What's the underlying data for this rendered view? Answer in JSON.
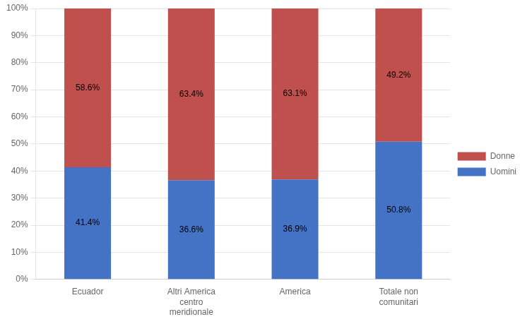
{
  "chart_data": {
    "type": "bar",
    "stacked": true,
    "categories": [
      "Ecuador",
      "Altri America\ncentro\nmeridionale",
      "America",
      "Totale non\ncomunitari"
    ],
    "series": [
      {
        "name": "Uomini",
        "color": "#4472C4",
        "values": [
          41.4,
          36.6,
          36.9,
          50.8
        ],
        "value_labels": [
          "41.4%",
          "36.6%",
          "36.9%",
          "50.8%"
        ]
      },
      {
        "name": "Donne",
        "color": "#C0504D",
        "values": [
          58.6,
          63.4,
          63.1,
          49.2
        ],
        "value_labels": [
          "58.6%",
          "63.4%",
          "63.1%",
          "49.2%"
        ]
      }
    ],
    "ylim": [
      0,
      100
    ],
    "yticks": [
      {
        "value": 0,
        "label": "0%"
      },
      {
        "value": 10,
        "label": "10%"
      },
      {
        "value": 20,
        "label": "20%"
      },
      {
        "value": 30,
        "label": "30%"
      },
      {
        "value": 40,
        "label": "40%"
      },
      {
        "value": 50,
        "label": "50%"
      },
      {
        "value": 60,
        "label": "60%"
      },
      {
        "value": 70,
        "label": "70%"
      },
      {
        "value": 80,
        "label": "80%"
      },
      {
        "value": 90,
        "label": "90%"
      },
      {
        "value": 100,
        "label": "100%"
      }
    ],
    "grid": true,
    "legend": "right",
    "data_labels": true
  }
}
